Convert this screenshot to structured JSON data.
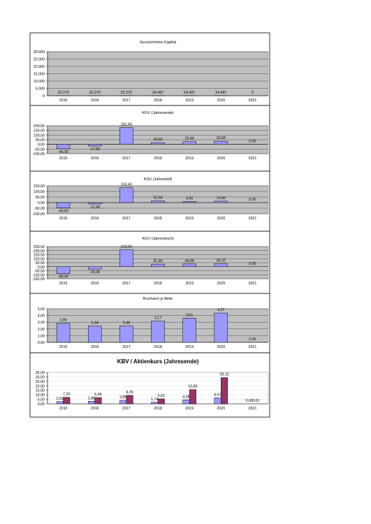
{
  "colors": {
    "bar": "#9999ff",
    "bar2": "#993366",
    "plot_bg": "#c0c0c0",
    "border": "#000000"
  },
  "chart_data": [
    {
      "type": "bar",
      "title": "Gezeichnetes Kapital",
      "categories": [
        "2015",
        "2016",
        "2017",
        "2018",
        "2019",
        "2020",
        "2021"
      ],
      "values": [
        22.27,
        22.27,
        22.27,
        24.497,
        24.497,
        24.497,
        0
      ],
      "value_labels": [
        "22.270",
        "22.270",
        "22.270",
        "24.497",
        "24.497",
        "24.497",
        "0"
      ],
      "ylim": [
        0,
        30000
      ],
      "yticks": [
        "30.000",
        "25.000",
        "20.000",
        "15.000",
        "10.000",
        "5.000",
        "0"
      ],
      "grid": true
    },
    {
      "type": "bar",
      "title": "KGV (Jahresende)",
      "categories": [
        "2015",
        "2016",
        "2017",
        "2018",
        "2019",
        "2020",
        "2021"
      ],
      "values": [
        -46.9,
        -17.56,
        181.84,
        18.92,
        29.44,
        33.84,
        0
      ],
      "value_labels": [
        "-46,90",
        "-17,56",
        "181,84",
        "18,92",
        "29,44",
        "33,84",
        "0,00"
      ],
      "ylim": [
        -100,
        200
      ],
      "yticks": [
        "200,00",
        "150,00",
        "100,00",
        "50,00",
        "0,00",
        "-50,00",
        "-100,00"
      ],
      "grid": true
    },
    {
      "type": "bar",
      "title": "KGV (Jahrestief)",
      "categories": [
        "2015",
        "2016",
        "2017",
        "2018",
        "2019",
        "2020",
        "2021"
      ],
      "values": [
        -45.6,
        -11.96,
        133.43,
        15.54,
        9.95,
        13.0,
        0
      ],
      "value_labels": [
        "-45,60",
        "-11,96",
        "133,43",
        "15,54",
        "9,95",
        "13,00",
        "0,00"
      ],
      "ylim": [
        -100,
        150
      ],
      "yticks": [
        "150,00",
        "100,00",
        "50,00",
        "0,00",
        "-50,00",
        "-100,00"
      ],
      "grid": true
    },
    {
      "type": "bar",
      "title": "KGV (Jahreshoch)",
      "categories": [
        "2015",
        "2016",
        "2017",
        "2018",
        "2019",
        "2020",
        "2021"
      ],
      "values": [
        -86.9,
        -29.36,
        210.69,
        31.93,
        34.09,
        36.22,
        0
      ],
      "value_labels": [
        "-86,90",
        "-29,36",
        "210,69",
        "31,93",
        "34,09",
        "36,22",
        "0,00"
      ],
      "ylim": [
        -150,
        250
      ],
      "yticks": [
        "250,00",
        "200,00",
        "150,00",
        "100,00",
        "50,00",
        "0,00",
        "-50,00",
        "-100,00",
        "-150,00"
      ],
      "grid": true
    },
    {
      "type": "bar",
      "title": "Buchwert je Aktie",
      "categories": [
        "2015",
        "2016",
        "2017",
        "2018",
        "2019",
        "2020",
        "2021"
      ],
      "values": [
        2.85,
        2.44,
        2.44,
        3.17,
        3.61,
        4.37,
        0
      ],
      "value_labels": [
        "2,85",
        "2,44",
        "2,44",
        "3,17",
        "3,61",
        "4,37",
        "0,00"
      ],
      "ylim": [
        0,
        5
      ],
      "yticks": [
        "5,00",
        "4,00",
        "3,00",
        "2,00",
        "1,00",
        "0,00"
      ],
      "grid": true
    },
    {
      "type": "bar",
      "title": "KBV / Aktienkurs (Jahresende)",
      "categories": [
        "2015",
        "2016",
        "2017",
        "2018",
        "2019",
        "2020",
        "2021"
      ],
      "series": [
        {
          "values": [
            2.52,
            2.88,
            3.85,
            1.74,
            4.38,
            6.67,
            0
          ],
          "value_labels": [
            "2,52",
            "2,88",
            "3,85",
            "1,74",
            "4,38",
            "6,67",
            "0,00"
          ]
        },
        {
          "values": [
            7.2,
            6.95,
            9.39,
            5.52,
            15.8,
            29.15,
            0
          ],
          "value_labels": [
            "7,20",
            "6,95",
            "9,39",
            "5,52",
            "15,80",
            "29,15",
            "0,00"
          ]
        }
      ],
      "ylim": [
        0,
        35
      ],
      "yticks": [
        "35,00",
        "30,00",
        "25,00",
        "20,00",
        "15,00",
        "10,00",
        "5,00",
        "0,00"
      ],
      "grid": false
    }
  ]
}
